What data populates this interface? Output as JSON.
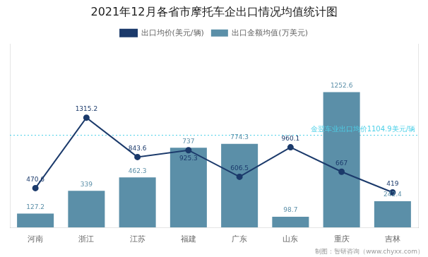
{
  "chart_data": {
    "type": "bar",
    "title": "2021年12月各省市摩托车企出口情况均值统计图",
    "categories": [
      "河南",
      "浙江",
      "江苏",
      "福建",
      "广东",
      "山东",
      "重庆",
      "吉林"
    ],
    "series": [
      {
        "name": "出口金额均值(万美元)",
        "type": "bar",
        "color": "#5b8fa8",
        "values": [
          127.2,
          339.0,
          462.3,
          737.0,
          774.3,
          98.7,
          1252.6,
          242.4
        ]
      },
      {
        "name": "出口均价(美元/辆)",
        "type": "line",
        "axis": "y2",
        "color": "#1b3a6b",
        "marker": "circle",
        "line_style": "solid",
        "values": [
          470.6,
          1315.2,
          843.6,
          925.3,
          606.5,
          960.1,
          667.0,
          419.0
        ]
      }
    ],
    "ylim": [
      0,
      1700
    ],
    "y2lim": [
      0,
      2200
    ],
    "grid": false,
    "legend": "top",
    "data_labels": true,
    "tick_labels": "x",
    "reference_lines": [
      {
        "value": 1104.9,
        "axis": "y2",
        "color": "#4dd0e8",
        "line_style": "dotted",
        "label": "金翌车业出口均价1104.9美元/辆"
      }
    ],
    "footer": "制图：智研咨询（www.chyxx.com）"
  }
}
